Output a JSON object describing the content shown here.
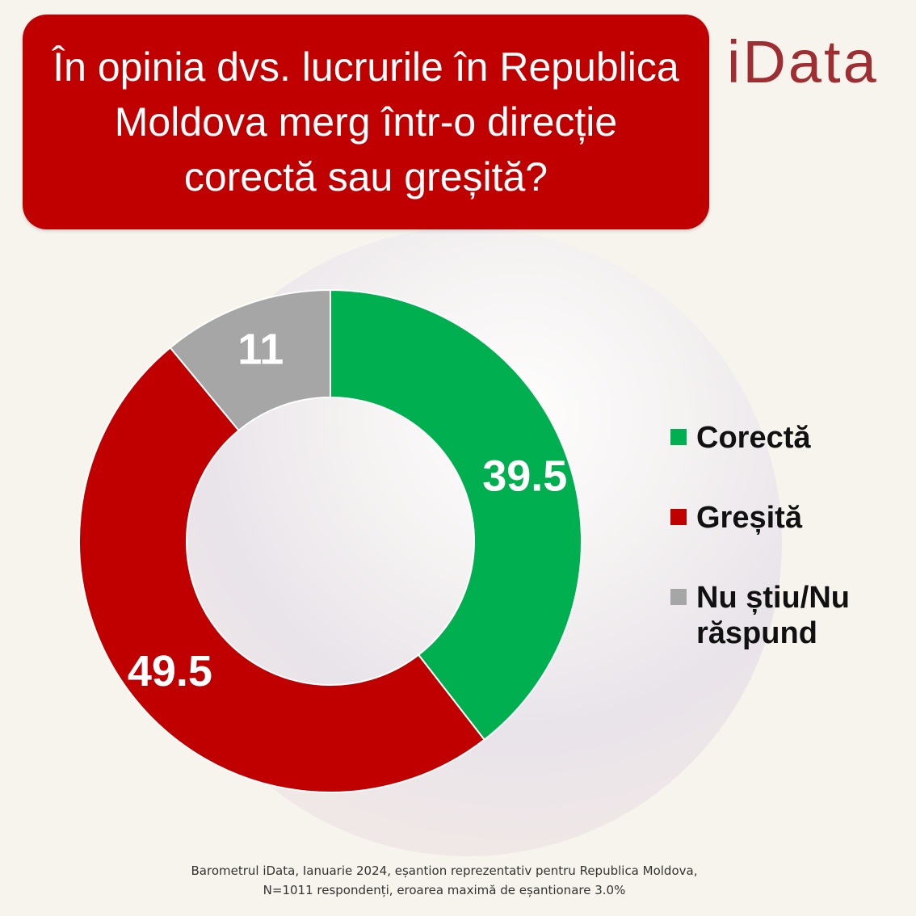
{
  "title": "În opinia dvs. lucrurile în Republica Moldova merg într-o direcție corectă sau greșită?",
  "logo": "iData",
  "chart_data": {
    "type": "pie",
    "style": "donut",
    "categories": [
      "Corectă",
      "Greșită",
      "Nu știu/Nu răspund"
    ],
    "values": [
      39.5,
      49.5,
      11
    ],
    "value_labels": [
      "39.5",
      "49.5",
      "11"
    ],
    "colors": [
      "#00b050",
      "#c00000",
      "#a6a6a6"
    ],
    "legend_position": "right"
  },
  "footer": {
    "line1": "Barometrul iData, Ianuarie 2024, eșantion reprezentativ pentru Republica Moldova,",
    "line2": "N=1011 respondenți, eroarea maximă de eșantionare 3.0%"
  }
}
